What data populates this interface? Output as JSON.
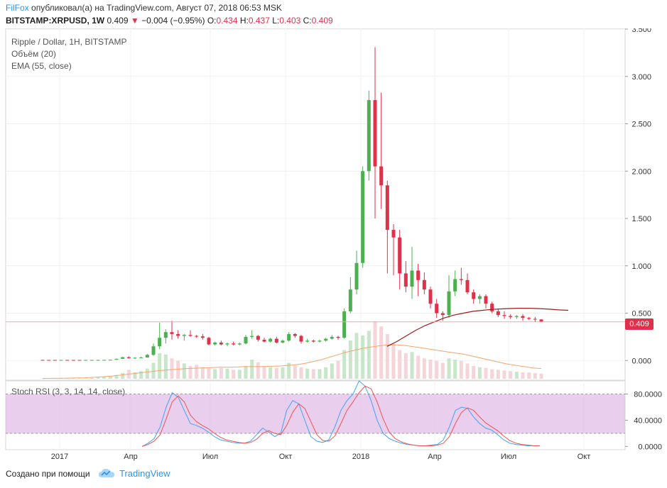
{
  "header": {
    "author": "FilFox",
    "published_text": "опубликовал(а) на TradingView.com, Август 07, 2018 06:53 MSK",
    "symbol": "BITSTAMP:XRPUSD, 1W",
    "last": "0.409",
    "change": "−0.004 (−0.95%)",
    "o_label": "O:",
    "o_value": "0.434",
    "h_label": "H:",
    "h_value": "0.437",
    "l_label": "L:",
    "l_value": "0.403",
    "c_label": "C:",
    "c_value": "0.409"
  },
  "legend": {
    "main": "Ripple / Dollar, 1Н, BITSTAMP",
    "volume": "Объём (20)",
    "ema": "EMA (55, close)",
    "stoch": "Stoch RSI (3, 3, 14, 14, close)"
  },
  "price_tag": "0.409",
  "colors": {
    "up": "#4caf50",
    "down": "#e0314a",
    "ema": "#9c1c1c",
    "vol_ma": "#f5a56a",
    "k": "#42a5f5",
    "d": "#ef5350",
    "band": "#e1bee7"
  },
  "chart_data": [
    {
      "type": "candlestick",
      "title": "Ripple / Dollar, 1Н, BITSTAMP",
      "y_ticks": [
        "3.500",
        "3.000",
        "2.500",
        "2.000",
        "1.500",
        "1.000",
        "0.500",
        "0.000"
      ],
      "ylim": [
        -0.2,
        3.5
      ],
      "x_ticks": [
        "2017",
        "Апр",
        "Июл",
        "Окт",
        "2018",
        "Апр",
        "Июл",
        "Окт"
      ],
      "grid": true,
      "candles": [
        [
          0.0065,
          0.0065,
          0.0063,
          0.0064
        ],
        [
          0.0064,
          0.0065,
          0.0062,
          0.0063
        ],
        [
          0.0063,
          0.0064,
          0.006,
          0.0062
        ],
        [
          0.0062,
          0.0064,
          0.006,
          0.0063
        ],
        [
          0.0063,
          0.0065,
          0.006,
          0.0062
        ],
        [
          0.0062,
          0.0063,
          0.006,
          0.0061
        ],
        [
          0.0061,
          0.0062,
          0.0059,
          0.006
        ],
        [
          0.006,
          0.0062,
          0.0059,
          0.0061
        ],
        [
          0.0061,
          0.0063,
          0.006,
          0.0062
        ],
        [
          0.0062,
          0.0065,
          0.006,
          0.0064
        ],
        [
          0.0064,
          0.007,
          0.0062,
          0.0068
        ],
        [
          0.0068,
          0.009,
          0.0065,
          0.0085
        ],
        [
          0.0085,
          0.02,
          0.008,
          0.018
        ],
        [
          0.018,
          0.04,
          0.016,
          0.035
        ],
        [
          0.035,
          0.045,
          0.02,
          0.025
        ],
        [
          0.025,
          0.035,
          0.015,
          0.03
        ],
        [
          0.03,
          0.04,
          0.025,
          0.032
        ],
        [
          0.032,
          0.07,
          0.03,
          0.06
        ],
        [
          0.06,
          0.18,
          0.05,
          0.15
        ],
        [
          0.15,
          0.4,
          0.12,
          0.24
        ],
        [
          0.24,
          0.33,
          0.18,
          0.3
        ],
        [
          0.3,
          0.42,
          0.22,
          0.28
        ],
        [
          0.28,
          0.32,
          0.23,
          0.26
        ],
        [
          0.26,
          0.28,
          0.21,
          0.27
        ],
        [
          0.27,
          0.32,
          0.25,
          0.26
        ],
        [
          0.26,
          0.27,
          0.24,
          0.255
        ],
        [
          0.255,
          0.28,
          0.22,
          0.24
        ],
        [
          0.24,
          0.25,
          0.16,
          0.17
        ],
        [
          0.17,
          0.2,
          0.16,
          0.19
        ],
        [
          0.19,
          0.21,
          0.16,
          0.17
        ],
        [
          0.17,
          0.19,
          0.15,
          0.18
        ],
        [
          0.18,
          0.2,
          0.16,
          0.17
        ],
        [
          0.17,
          0.19,
          0.16,
          0.18
        ],
        [
          0.18,
          0.27,
          0.17,
          0.25
        ],
        [
          0.25,
          0.32,
          0.23,
          0.26
        ],
        [
          0.26,
          0.27,
          0.2,
          0.22
        ],
        [
          0.22,
          0.24,
          0.19,
          0.2
        ],
        [
          0.2,
          0.24,
          0.19,
          0.23
        ],
        [
          0.23,
          0.25,
          0.18,
          0.19
        ],
        [
          0.19,
          0.22,
          0.18,
          0.21
        ],
        [
          0.21,
          0.3,
          0.2,
          0.28
        ],
        [
          0.28,
          0.29,
          0.24,
          0.26
        ],
        [
          0.26,
          0.27,
          0.18,
          0.2
        ],
        [
          0.2,
          0.23,
          0.19,
          0.21
        ],
        [
          0.21,
          0.22,
          0.19,
          0.2
        ],
        [
          0.2,
          0.22,
          0.19,
          0.21
        ],
        [
          0.21,
          0.24,
          0.2,
          0.23
        ],
        [
          0.23,
          0.27,
          0.22,
          0.25
        ],
        [
          0.25,
          0.26,
          0.22,
          0.24
        ],
        [
          0.24,
          0.55,
          0.23,
          0.52
        ],
        [
          0.52,
          0.88,
          0.5,
          0.75
        ],
        [
          0.75,
          1.16,
          0.7,
          1.03
        ],
        [
          1.03,
          2.05,
          0.98,
          2.0
        ],
        [
          2.0,
          2.85,
          1.9,
          2.75
        ],
        [
          2.75,
          3.31,
          1.5,
          2.05
        ],
        [
          2.05,
          2.83,
          1.6,
          1.85
        ],
        [
          1.85,
          1.9,
          0.92,
          1.38
        ],
        [
          1.38,
          1.44,
          0.9,
          1.3
        ],
        [
          1.3,
          1.38,
          0.75,
          0.92
        ],
        [
          0.92,
          1.05,
          0.72,
          0.78
        ],
        [
          0.78,
          1.2,
          0.65,
          0.95
        ],
        [
          0.95,
          1.02,
          0.68,
          0.85
        ],
        [
          0.85,
          0.93,
          0.7,
          0.75
        ],
        [
          0.75,
          0.78,
          0.55,
          0.6
        ],
        [
          0.6,
          0.65,
          0.45,
          0.5
        ],
        [
          0.5,
          0.52,
          0.42,
          0.48
        ],
        [
          0.48,
          0.9,
          0.45,
          0.73
        ],
        [
          0.73,
          0.95,
          0.68,
          0.86
        ],
        [
          0.86,
          0.98,
          0.8,
          0.85
        ],
        [
          0.85,
          0.92,
          0.7,
          0.72
        ],
        [
          0.72,
          0.75,
          0.6,
          0.65
        ],
        [
          0.65,
          0.7,
          0.6,
          0.68
        ],
        [
          0.68,
          0.7,
          0.55,
          0.6
        ],
        [
          0.6,
          0.62,
          0.5,
          0.52
        ],
        [
          0.52,
          0.55,
          0.46,
          0.48
        ],
        [
          0.48,
          0.52,
          0.44,
          0.47
        ],
        [
          0.47,
          0.49,
          0.44,
          0.46
        ],
        [
          0.46,
          0.48,
          0.44,
          0.47
        ],
        [
          0.47,
          0.49,
          0.42,
          0.45
        ],
        [
          0.45,
          0.46,
          0.43,
          0.44
        ],
        [
          0.44,
          0.46,
          0.41,
          0.434
        ],
        [
          0.434,
          0.437,
          0.403,
          0.409
        ]
      ],
      "ema": [
        0.15,
        0.2,
        0.26,
        0.32,
        0.37,
        0.41,
        0.45,
        0.48,
        0.5,
        0.52,
        0.53,
        0.54,
        0.545,
        0.55,
        0.552,
        0.552,
        0.548,
        0.542,
        0.535,
        0.53
      ],
      "last_price": 0.409
    },
    {
      "type": "bar",
      "title": "Объём (20)",
      "values": [
        0.5,
        0.5,
        0.6,
        0.6,
        0.7,
        0.9,
        1,
        1,
        1.2,
        2,
        3,
        4,
        6,
        9,
        14,
        10,
        12,
        16,
        25,
        40,
        38,
        32,
        28,
        24,
        20,
        22,
        18,
        16,
        15,
        17,
        16,
        14,
        14,
        20,
        30,
        26,
        20,
        18,
        17,
        18,
        25,
        20,
        18,
        16,
        15,
        15,
        18,
        24,
        28,
        45,
        60,
        72,
        68,
        75,
        90,
        82,
        70,
        55,
        45,
        40,
        42,
        36,
        32,
        30,
        28,
        25,
        32,
        30,
        28,
        24,
        20,
        18,
        17,
        15,
        14,
        13,
        12,
        11,
        10,
        10,
        9,
        8
      ],
      "ma": [
        0.6,
        0.7,
        0.8,
        1,
        1.2,
        1.6,
        2.2,
        3,
        4,
        5.5,
        7,
        8.5,
        10,
        11.5,
        13,
        14,
        15,
        16,
        16.5,
        17,
        17.5,
        18,
        18,
        18.5,
        19,
        19,
        19,
        19.5,
        20,
        21,
        22,
        24,
        27,
        30,
        34,
        38,
        42,
        45,
        48,
        50,
        52,
        53,
        53,
        52,
        50,
        48,
        46,
        44,
        42,
        40,
        38,
        35,
        32,
        29,
        26,
        23,
        21,
        19,
        17,
        16
      ],
      "ylim": [
        0,
        100
      ]
    },
    {
      "type": "line",
      "title": "Stoch RSI (3, 3, 14, 14, close)",
      "y_ticks": [
        "80.0000",
        "40.0000",
        "0.0000"
      ],
      "ylim": [
        -5,
        100
      ],
      "series": [
        {
          "values": [
            0,
            5,
            12,
            30,
            60,
            82,
            75,
            55,
            35,
            32,
            28,
            22,
            15,
            10,
            8,
            6,
            5,
            5,
            8,
            18,
            28,
            22,
            15,
            20,
            55,
            70,
            65,
            40,
            15,
            8,
            6,
            10,
            30,
            55,
            70,
            80,
            100,
            92,
            70,
            40,
            20,
            12,
            8,
            5,
            3,
            2,
            1,
            1,
            2,
            3,
            10,
            30,
            55,
            60,
            58,
            45,
            35,
            28,
            25,
            18,
            10,
            5,
            3,
            2,
            1,
            1,
            1
          ]
        },
        {
          "values": [
            0,
            3,
            8,
            18,
            42,
            68,
            77,
            68,
            48,
            38,
            32,
            27,
            20,
            14,
            10,
            8,
            6,
            5,
            6,
            11,
            20,
            24,
            20,
            18,
            32,
            52,
            65,
            58,
            38,
            18,
            9,
            8,
            16,
            35,
            55,
            68,
            82,
            92,
            88,
            68,
            42,
            22,
            12,
            7,
            4,
            2,
            1,
            1,
            1,
            2,
            5,
            15,
            35,
            52,
            59,
            55,
            45,
            36,
            30,
            24,
            16,
            9,
            5,
            3,
            2,
            1,
            1
          ]
        }
      ],
      "band": [
        20,
        80
      ]
    }
  ],
  "footer": {
    "made_with": "Создано при помощи",
    "brand": "TradingView"
  }
}
